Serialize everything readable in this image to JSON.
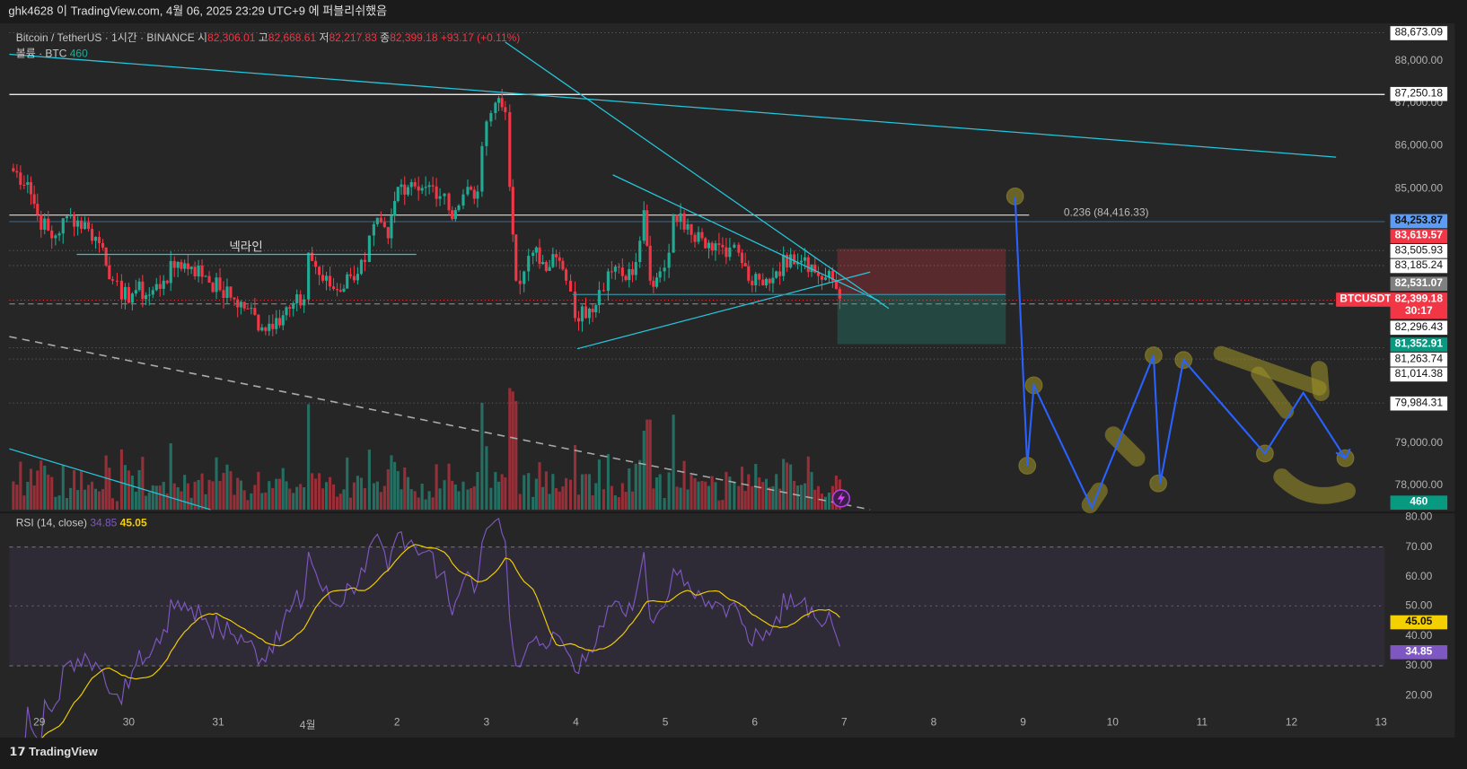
{
  "header": {
    "published": "ghk4628 이 TradingView.com, 4월 06, 2025 23:29 UTC+9 에 퍼블리쉬했음"
  },
  "legend": {
    "symbol": "Bitcoin / TetherUS · 1시간 · BINANCE",
    "o_label": "시",
    "o": "82,306.01",
    "h_label": "고",
    "h": "82,668.61",
    "l_label": "저",
    "l": "82,217.83",
    "c_label": "종",
    "c": "82,399.18",
    "change": "+93.17 (+0.11%)",
    "volume_label": "볼륨 · BTC",
    "volume": "460",
    "rsi_label": "RSI (14, close)",
    "rsi": "34.85",
    "rsi_ma": "45.05"
  },
  "annotations": {
    "neckline": "넥라인",
    "fib": "0.236 (84,416.33)",
    "symbol_tag": "BTCUSDT"
  },
  "price_labels": [
    {
      "text": "88,673.09",
      "style": "white"
    },
    {
      "text": "87,250.18",
      "style": "white"
    },
    {
      "text": "84,253.87",
      "style": "blue"
    },
    {
      "text": "83,619.57",
      "style": "red"
    },
    {
      "text": "83,505.93",
      "style": "white"
    },
    {
      "text": "83,185.24",
      "style": "white"
    },
    {
      "text": "82,531.07",
      "style": "gray"
    },
    {
      "text": "82,399.18",
      "style": "red"
    },
    {
      "text": "30:17",
      "style": "red"
    },
    {
      "text": "82,296.43",
      "style": "white"
    },
    {
      "text": "81,352.91",
      "style": "green"
    },
    {
      "text": "81,263.74",
      "style": "white"
    },
    {
      "text": "81,014.38",
      "style": "white"
    },
    {
      "text": "79,984.31",
      "style": "white"
    },
    {
      "text": "460",
      "style": "green"
    },
    {
      "text": "45.05",
      "style": "yellow"
    },
    {
      "text": "34.85",
      "style": "purple"
    }
  ],
  "price_ticks": [
    "88,000.00",
    "87,000.00",
    "86,000.00",
    "85,000.00",
    "79,000.00",
    "78,000.00"
  ],
  "rsi_ticks": [
    "80.00",
    "70.00",
    "60.00",
    "50.00",
    "40.00",
    "30.00",
    "20.00"
  ],
  "time_ticks": [
    "29",
    "30",
    "31",
    "4월",
    "2",
    "3",
    "4",
    "5",
    "6",
    "7",
    "8",
    "9",
    "10",
    "11",
    "12",
    "13"
  ],
  "footer": {
    "logo": "TradingView"
  },
  "colors": {
    "up": "#22ab94",
    "down": "#f23645",
    "rsi": "#7e57c2",
    "rsi_ma": "#f5d000",
    "drawing": "#26c6da",
    "projection": "#2962ff"
  },
  "chart_data": {
    "type": "candlestick",
    "title": "Bitcoin / TetherUS · 1시간 · BINANCE",
    "x_unit": "days since Mar 29 00:00",
    "ylim": [
      77800,
      88900
    ],
    "rsi_ylim": [
      15,
      85
    ],
    "path": [
      [
        -0.33,
        85470
      ],
      [
        -0.13,
        85140
      ],
      [
        -0.02,
        84370
      ],
      [
        0.14,
        83820
      ],
      [
        0.35,
        84370
      ],
      [
        0.55,
        84040
      ],
      [
        0.71,
        83600
      ],
      [
        0.82,
        82820
      ],
      [
        0.92,
        82380
      ],
      [
        1.08,
        82600
      ],
      [
        1.23,
        82490
      ],
      [
        1.39,
        82820
      ],
      [
        1.55,
        83260
      ],
      [
        1.7,
        83150
      ],
      [
        1.86,
        82930
      ],
      [
        2.02,
        82600
      ],
      [
        2.18,
        82380
      ],
      [
        2.33,
        82160
      ],
      [
        2.49,
        81720
      ],
      [
        2.65,
        81940
      ],
      [
        2.8,
        82160
      ],
      [
        2.96,
        82380
      ],
      [
        3.01,
        83480
      ],
      [
        3.17,
        82820
      ],
      [
        3.33,
        82600
      ],
      [
        3.48,
        82930
      ],
      [
        3.64,
        83260
      ],
      [
        3.74,
        84150
      ],
      [
        3.9,
        83820
      ],
      [
        4.01,
        85030
      ],
      [
        4.16,
        85140
      ],
      [
        4.32,
        85030
      ],
      [
        4.48,
        84810
      ],
      [
        4.58,
        84480
      ],
      [
        4.69,
        84590
      ],
      [
        4.79,
        85030
      ],
      [
        4.9,
        84920
      ],
      [
        5.0,
        86570
      ],
      [
        5.1,
        87010
      ],
      [
        5.21,
        86790
      ],
      [
        5.26,
        85030
      ],
      [
        5.33,
        82820
      ],
      [
        5.42,
        83040
      ],
      [
        5.52,
        83480
      ],
      [
        5.63,
        83260
      ],
      [
        5.78,
        83370
      ],
      [
        5.89,
        82820
      ],
      [
        5.99,
        81940
      ],
      [
        6.15,
        82160
      ],
      [
        6.26,
        82600
      ],
      [
        6.36,
        83040
      ],
      [
        6.52,
        82930
      ],
      [
        6.67,
        83260
      ],
      [
        6.76,
        84480
      ],
      [
        6.83,
        82820
      ],
      [
        6.94,
        83040
      ],
      [
        7.04,
        83480
      ],
      [
        7.09,
        84370
      ],
      [
        7.25,
        84150
      ],
      [
        7.41,
        83820
      ],
      [
        7.56,
        83700
      ],
      [
        7.72,
        83600
      ],
      [
        7.82,
        83480
      ],
      [
        7.93,
        82820
      ],
      [
        8.09,
        82710
      ],
      [
        8.24,
        83040
      ],
      [
        8.4,
        83440
      ],
      [
        8.56,
        83370
      ],
      [
        8.71,
        82930
      ],
      [
        8.87,
        82820
      ],
      [
        8.95,
        82399
      ]
    ]
  }
}
